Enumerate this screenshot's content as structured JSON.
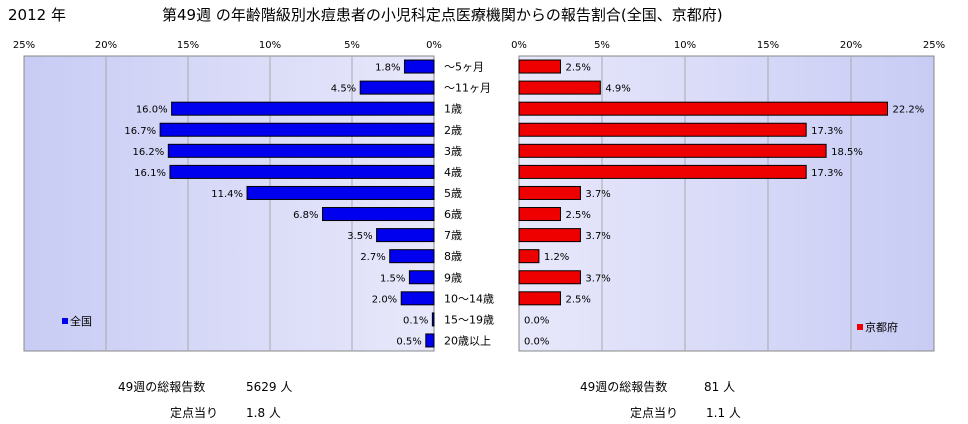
{
  "header": {
    "year": "2012 年",
    "title": "第49週 の年齢階級別水痘患者の小児科定点医療機関からの報告割合(全国、京都府)"
  },
  "chart_data": {
    "type": "bar",
    "orientation": "horizontal-butterfly",
    "categories": [
      "~5ヶ月",
      "~11ヶ月",
      "1歳",
      "2歳",
      "3歳",
      "4歳",
      "5歳",
      "6歳",
      "7歳",
      "8歳",
      "9歳",
      "10~14歳",
      "15~19歳",
      "20歳以上"
    ],
    "category_labels": [
      "〜5ヶ月",
      "〜11ヶ月",
      "1歳",
      "2歳",
      "3歳",
      "4歳",
      "5歳",
      "6歳",
      "7歳",
      "8歳",
      "9歳",
      "10〜14歳",
      "15〜19歳",
      "20歳以上"
    ],
    "xlim": [
      0,
      25
    ],
    "ticks": [
      0,
      5,
      10,
      15,
      20,
      25
    ],
    "tick_labels": [
      "0%",
      "5%",
      "10%",
      "15%",
      "20%",
      "25%"
    ],
    "legend_position": "bottom-left / bottom-right",
    "series": [
      {
        "name": "全国",
        "color": "#0000ee",
        "values": [
          1.8,
          4.5,
          16.0,
          16.7,
          16.2,
          16.1,
          11.4,
          6.8,
          3.5,
          2.7,
          1.5,
          2.0,
          0.1,
          0.5
        ],
        "value_labels": [
          "1.8%",
          "4.5%",
          "16.0%",
          "16.7%",
          "16.2%",
          "16.1%",
          "11.4%",
          "6.8%",
          "3.5%",
          "2.7%",
          "1.5%",
          "2.0%",
          "0.1%",
          "0.5%"
        ]
      },
      {
        "name": "京都府",
        "color": "#ee0000",
        "values": [
          2.5,
          4.9,
          22.2,
          17.3,
          18.5,
          17.3,
          3.7,
          2.5,
          3.7,
          1.2,
          3.7,
          2.5,
          0.0,
          0.0
        ],
        "value_labels": [
          "2.5%",
          "4.9%",
          "22.2%",
          "17.3%",
          "18.5%",
          "17.3%",
          "3.7%",
          "2.5%",
          "3.7%",
          "1.2%",
          "3.7%",
          "2.5%",
          "0.0%",
          "0.0%"
        ]
      }
    ]
  },
  "footer": {
    "national": {
      "total_label": "49週の総報告数",
      "total_value": "5629 人",
      "per_point_label": "定点当り",
      "per_point_value": "1.8 人"
    },
    "kyoto": {
      "total_label": "49週の総報告数",
      "total_value": "81 人",
      "per_point_label": "定点当り",
      "per_point_value": "1.1 人"
    }
  }
}
